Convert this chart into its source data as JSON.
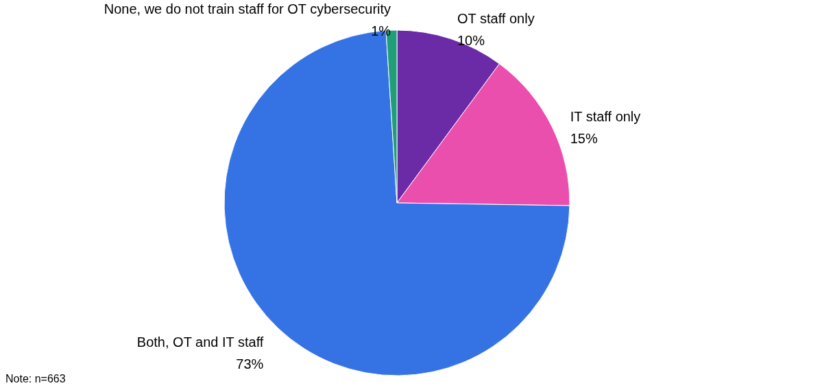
{
  "chart_data": {
    "type": "pie",
    "categories": [
      "OT staff only",
      "IT staff only",
      "Both, OT and IT staff",
      "None, we do not train staff for OT cybersecurity"
    ],
    "values": [
      10,
      15,
      73,
      1
    ],
    "colors": [
      "#6b2aa6",
      "#eb4fae",
      "#3573e4",
      "#1f9e78"
    ],
    "value_labels": [
      "10%",
      "15%",
      "73%",
      "1%"
    ],
    "annotations": [
      "Note: n=663"
    ]
  }
}
